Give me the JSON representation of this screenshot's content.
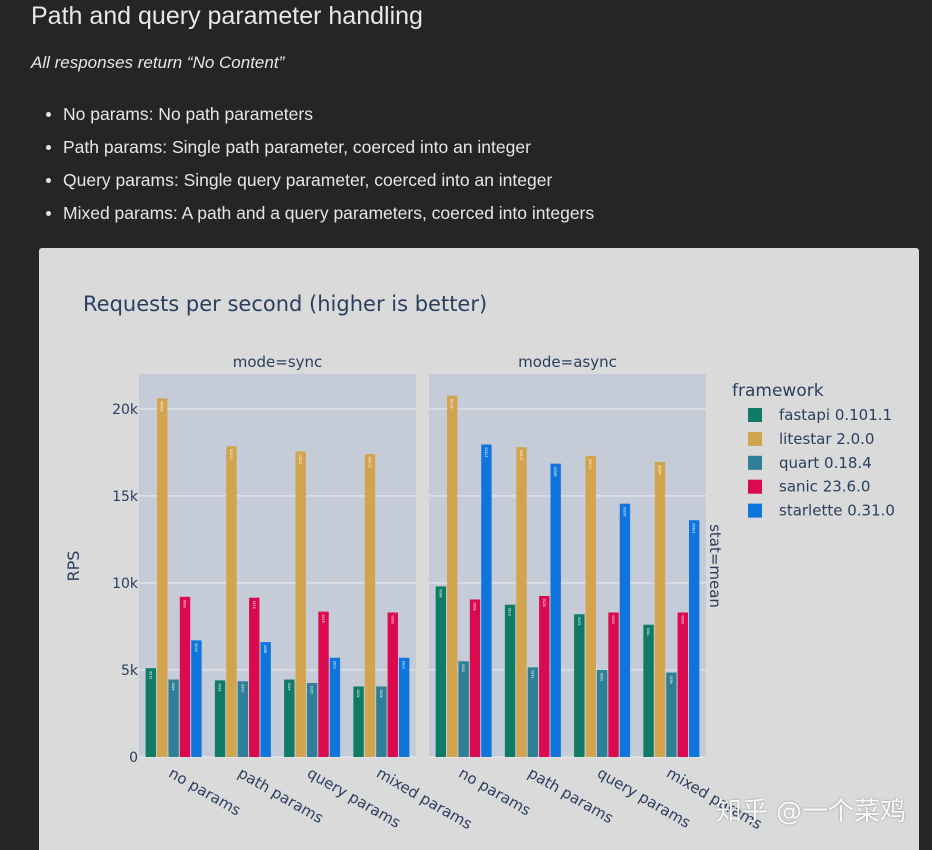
{
  "page": {
    "title": "Path and query parameter handling",
    "subtitle": "All responses return “No Content”",
    "bullets": [
      "No params: No path parameters",
      "Path params: Single path parameter, coerced into an integer",
      "Query params: Single query parameter, coerced into an integer",
      "Mixed params: A path and a query parameters, coerced into integers"
    ],
    "watermark": "知乎 @一个菜鸡"
  },
  "chart_data": {
    "type": "bar",
    "title": "Requests per second (higher is better)",
    "ylabel": "RPS",
    "ylim": [
      0,
      22000
    ],
    "yticks": [
      0,
      5000,
      10000,
      15000,
      20000
    ],
    "ytick_labels": [
      "0",
      "5k",
      "10k",
      "15k",
      "20k"
    ],
    "row_facet_label": "stat=mean",
    "legend_title": "framework",
    "categories": [
      "no params",
      "path params",
      "query params",
      "mixed params"
    ],
    "series": [
      {
        "name": "fastapi 0.101.1",
        "color": "#0f7a66"
      },
      {
        "name": "litestar 2.0.0",
        "color": "#d2a44e"
      },
      {
        "name": "quart 0.18.4",
        "color": "#2f7f96"
      },
      {
        "name": "sanic 23.6.0",
        "color": "#db0a4e"
      },
      {
        "name": "starlette 0.31.0",
        "color": "#0f74dc"
      }
    ],
    "facets": [
      {
        "label": "mode=sync",
        "values": [
          [
            5100,
            20600,
            4450,
            9200,
            6700
          ],
          [
            4400,
            17850,
            4350,
            9150,
            6600
          ],
          [
            4450,
            17550,
            4250,
            8350,
            5700
          ],
          [
            4050,
            17400,
            4050,
            8300,
            5700
          ]
        ]
      },
      {
        "label": "mode=async",
        "values": [
          [
            9800,
            20750,
            5500,
            9050,
            17950
          ],
          [
            8750,
            17800,
            5150,
            9250,
            16850
          ],
          [
            8200,
            17300,
            5000,
            8300,
            14550
          ],
          [
            7600,
            16950,
            4850,
            8300,
            13600
          ]
        ]
      }
    ]
  }
}
